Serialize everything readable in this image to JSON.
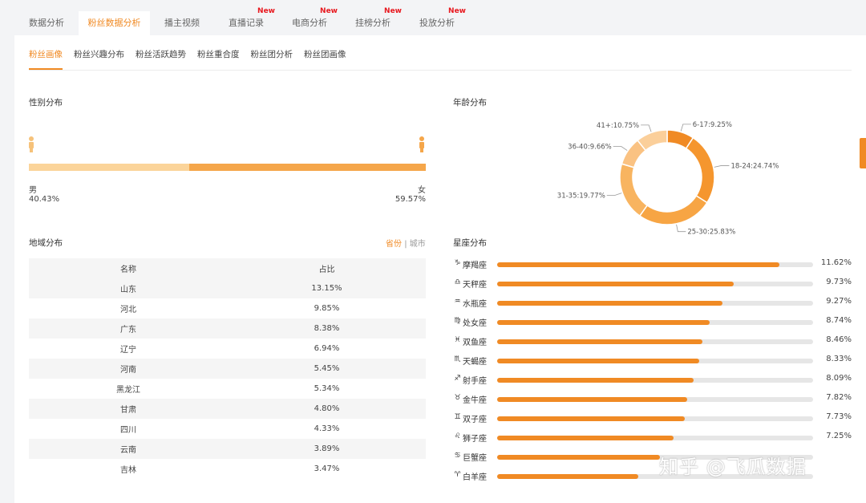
{
  "top_tabs": [
    {
      "label": "数据分析",
      "new": ""
    },
    {
      "label": "粉丝数据分析",
      "new": ""
    },
    {
      "label": "播主视频",
      "new": ""
    },
    {
      "label": "直播记录",
      "new": "New"
    },
    {
      "label": "电商分析",
      "new": "New"
    },
    {
      "label": "挂榜分析",
      "new": "New"
    },
    {
      "label": "投放分析",
      "new": "New"
    }
  ],
  "sub_tabs": [
    "粉丝画像",
    "粉丝兴趣分布",
    "粉丝活跃趋势",
    "粉丝重合度",
    "粉丝团分析",
    "粉丝团画像"
  ],
  "gender": {
    "title": "性别分布",
    "male_label": "男",
    "male_pct": "40.43%",
    "male_value": 40.43,
    "female_label": "女",
    "female_pct": "59.57%",
    "female_value": 59.57,
    "colors": {
      "male": "#fbd49a",
      "female": "#f5a64a"
    }
  },
  "region": {
    "title": "地域分布",
    "switch_on": "省份",
    "separator": "|",
    "switch_off": "城市",
    "headers": [
      "名称",
      "占比"
    ],
    "rows": [
      [
        "山东",
        "13.15%"
      ],
      [
        "河北",
        "9.85%"
      ],
      [
        "广东",
        "8.38%"
      ],
      [
        "辽宁",
        "6.94%"
      ],
      [
        "河南",
        "5.45%"
      ],
      [
        "黑龙江",
        "5.34%"
      ],
      [
        "甘肃",
        "4.80%"
      ],
      [
        "四川",
        "4.33%"
      ],
      [
        "云南",
        "3.89%"
      ],
      [
        "吉林",
        "3.47%"
      ]
    ]
  },
  "age": {
    "title": "年龄分布"
  },
  "zodiac": {
    "title": "星座分布",
    "items": [
      {
        "icon": "♑",
        "icon_name": "capricorn-icon",
        "name": "摩羯座",
        "pct": "11.62%",
        "value": 11.62
      },
      {
        "icon": "♎",
        "icon_name": "libra-icon",
        "name": "天秤座",
        "pct": "9.73%",
        "value": 9.73
      },
      {
        "icon": "♒",
        "icon_name": "aquarius-icon",
        "name": "水瓶座",
        "pct": "9.27%",
        "value": 9.27
      },
      {
        "icon": "♍",
        "icon_name": "virgo-icon",
        "name": "处女座",
        "pct": "8.74%",
        "value": 8.74
      },
      {
        "icon": "♓",
        "icon_name": "pisces-icon",
        "name": "双鱼座",
        "pct": "8.46%",
        "value": 8.46
      },
      {
        "icon": "♏",
        "icon_name": "scorpio-icon",
        "name": "天蝎座",
        "pct": "8.33%",
        "value": 8.33
      },
      {
        "icon": "♐",
        "icon_name": "sagittarius-icon",
        "name": "射手座",
        "pct": "8.09%",
        "value": 8.09
      },
      {
        "icon": "♉",
        "icon_name": "taurus-icon",
        "name": "金牛座",
        "pct": "7.82%",
        "value": 7.82
      },
      {
        "icon": "♊",
        "icon_name": "gemini-icon",
        "name": "双子座",
        "pct": "7.73%",
        "value": 7.73
      },
      {
        "icon": "♌",
        "icon_name": "leo-icon",
        "name": "狮子座",
        "pct": "7.25%",
        "value": 7.25
      },
      {
        "icon": "♋",
        "icon_name": "cancer-icon",
        "name": "巨蟹座",
        "pct": "",
        "value": 6.7
      },
      {
        "icon": "♈",
        "icon_name": "aries-icon",
        "name": "白羊座",
        "pct": "",
        "value": 5.8
      }
    ]
  },
  "watermark": "知乎 @飞瓜数据",
  "chart_data": {
    "type": "pie",
    "title": "年龄分布",
    "donut": true,
    "categories": [
      "6-17",
      "18-24",
      "25-30",
      "31-35",
      "36-40",
      "41+"
    ],
    "values": [
      9.25,
      24.74,
      25.83,
      19.77,
      9.66,
      10.75
    ],
    "labels": [
      "6-17:9.25%",
      "18-24:24.74%",
      "25-30:25.83%",
      "31-35:19.77%",
      "36-40:9.66%",
      "41+:10.75%"
    ],
    "colors": [
      "#f08a24",
      "#f5962e",
      "#f7a544",
      "#f8b460",
      "#fac282",
      "#fbcf9a"
    ]
  }
}
